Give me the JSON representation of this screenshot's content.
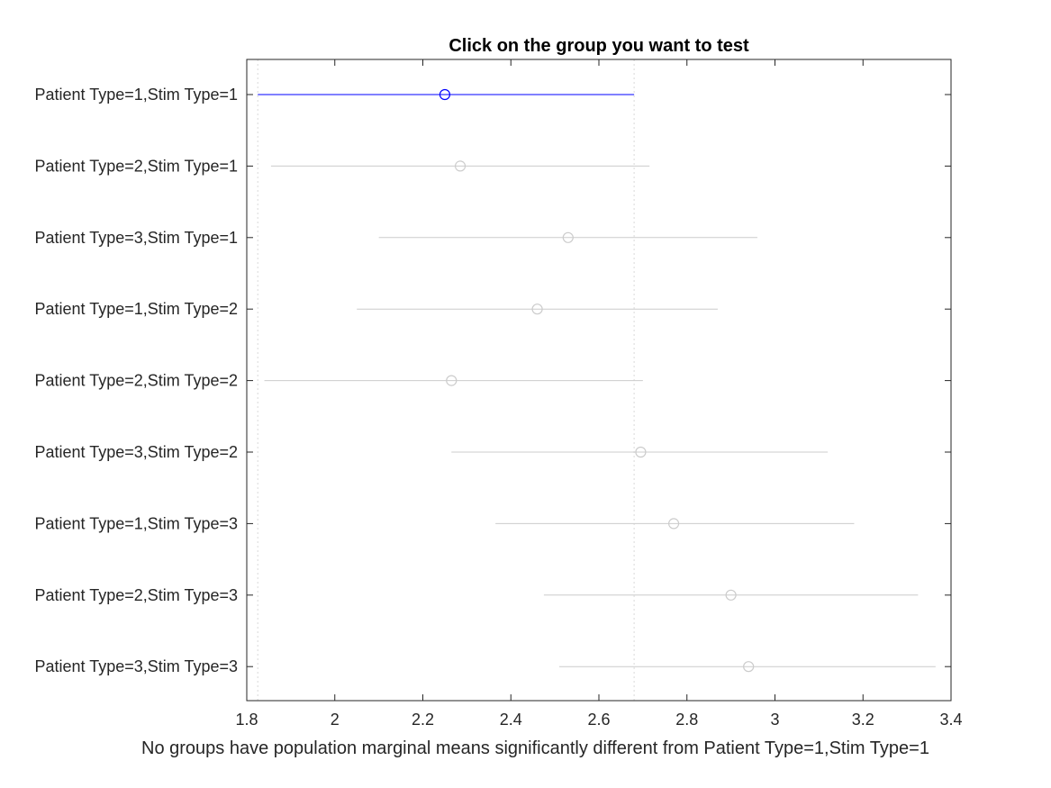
{
  "chart_data": {
    "type": "interval",
    "title": "Click on the group you want to test",
    "xlabel": "No groups have population marginal means significantly different from Patient Type=1,Stim Type=1",
    "ylabel": "",
    "xlim": [
      1.8,
      3.4
    ],
    "xticks": [
      "1.8",
      "2",
      "2.2",
      "2.4",
      "2.6",
      "2.8",
      "3",
      "3.2",
      "3.4"
    ],
    "grid": false,
    "selected_index": 0,
    "reference_lines": [
      1.825,
      2.68
    ],
    "colors": {
      "selected": "#0000ff",
      "other": "#cccccc",
      "axis": "#262626",
      "reference": "#d9d9d9"
    },
    "groups": [
      {
        "label": "Patient Type=1,Stim Type=1",
        "mean": 2.25,
        "lower": 1.825,
        "upper": 2.68
      },
      {
        "label": "Patient Type=2,Stim Type=1",
        "mean": 2.285,
        "lower": 1.855,
        "upper": 2.715
      },
      {
        "label": "Patient Type=3,Stim Type=1",
        "mean": 2.53,
        "lower": 2.1,
        "upper": 2.96
      },
      {
        "label": "Patient Type=1,Stim Type=2",
        "mean": 2.46,
        "lower": 2.05,
        "upper": 2.87
      },
      {
        "label": "Patient Type=2,Stim Type=2",
        "mean": 2.265,
        "lower": 1.84,
        "upper": 2.7
      },
      {
        "label": "Patient Type=3,Stim Type=2",
        "mean": 2.695,
        "lower": 2.265,
        "upper": 3.12
      },
      {
        "label": "Patient Type=1,Stim Type=3",
        "mean": 2.77,
        "lower": 2.365,
        "upper": 3.18
      },
      {
        "label": "Patient Type=2,Stim Type=3",
        "mean": 2.9,
        "lower": 2.475,
        "upper": 3.325
      },
      {
        "label": "Patient Type=3,Stim Type=3",
        "mean": 2.94,
        "lower": 2.51,
        "upper": 3.365
      }
    ]
  }
}
